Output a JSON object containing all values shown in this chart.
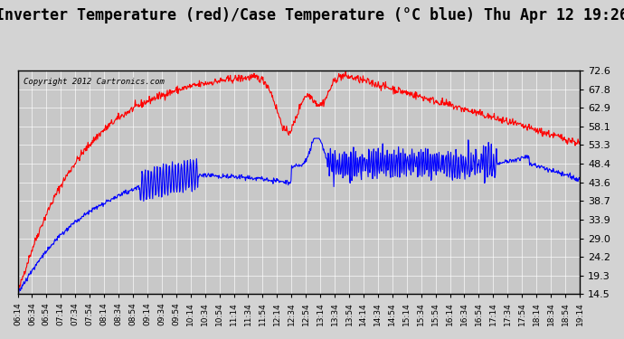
{
  "title": "Inverter Temperature (red)/Case Temperature (°C blue) Thu Apr 12 19:26",
  "copyright": "Copyright 2012 Cartronics.com",
  "yticks": [
    14.5,
    19.3,
    24.2,
    29.0,
    33.9,
    38.7,
    43.6,
    48.4,
    53.3,
    58.1,
    62.9,
    67.8,
    72.6
  ],
  "ymin": 14.5,
  "ymax": 72.6,
  "bg_color": "#d3d3d3",
  "plot_bg_color": "#c8c8c8",
  "grid_color": "#ffffff",
  "red_color": "#ff0000",
  "blue_color": "#0000ff",
  "title_fontsize": 12,
  "xtick_labels": [
    "06:14",
    "06:34",
    "06:54",
    "07:14",
    "07:34",
    "07:54",
    "08:14",
    "08:34",
    "08:54",
    "09:14",
    "09:34",
    "09:54",
    "10:14",
    "10:34",
    "10:54",
    "11:14",
    "11:34",
    "11:54",
    "12:14",
    "12:34",
    "12:54",
    "13:14",
    "13:34",
    "13:54",
    "14:14",
    "14:34",
    "14:54",
    "15:14",
    "15:34",
    "15:54",
    "16:14",
    "16:34",
    "16:54",
    "17:14",
    "17:34",
    "17:54",
    "18:14",
    "18:34",
    "18:54",
    "19:14"
  ]
}
